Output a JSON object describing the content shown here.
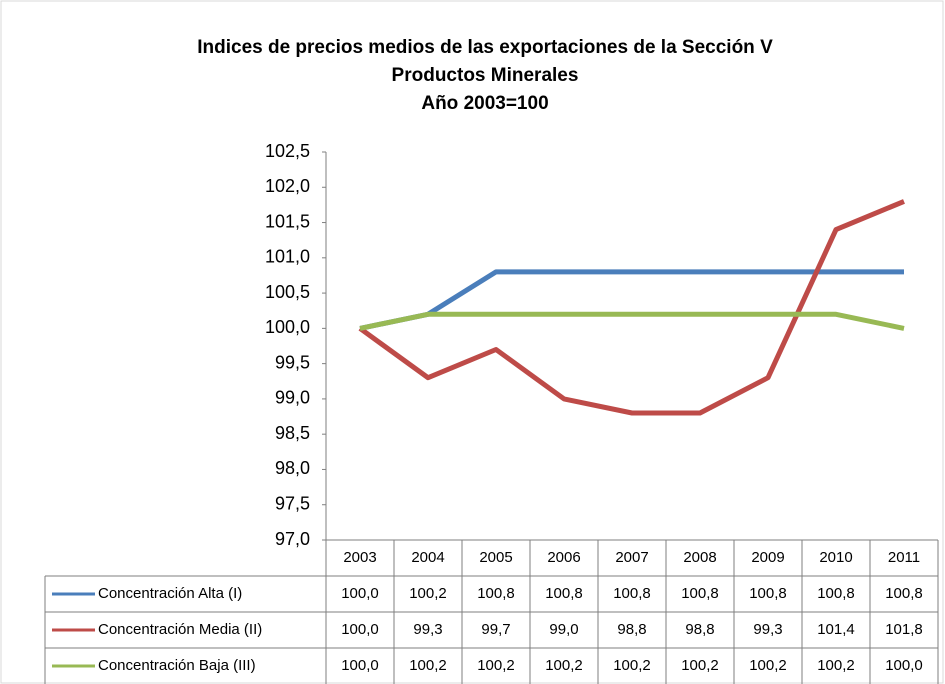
{
  "chart_data": {
    "type": "line",
    "title": [
      "Indices de precios medios de las exportaciones de la  Sección V",
      "Productos Minerales",
      "Año 2003=100"
    ],
    "categories": [
      "2003",
      "2004",
      "2005",
      "2006",
      "2007",
      "2008",
      "2009",
      "2010",
      "2011"
    ],
    "series": [
      {
        "name": "Concentración Alta (I)",
        "color": "#4a7ebb",
        "values": [
          100.0,
          100.2,
          100.8,
          100.8,
          100.8,
          100.8,
          100.8,
          100.8,
          100.8
        ],
        "value_labels": [
          "100,0",
          "100,2",
          "100,8",
          "100,8",
          "100,8",
          "100,8",
          "100,8",
          "100,8",
          "100,8"
        ]
      },
      {
        "name": "Concentración  Media (II)",
        "color": "#be4b48",
        "values": [
          100.0,
          99.3,
          99.7,
          99.0,
          98.8,
          98.8,
          99.3,
          101.4,
          101.8
        ],
        "value_labels": [
          "100,0",
          "99,3",
          "99,7",
          "99,0",
          "98,8",
          "98,8",
          "99,3",
          "101,4",
          "101,8"
        ]
      },
      {
        "name": "Concentración  Baja (III)",
        "color": "#98b954",
        "values": [
          100.0,
          100.2,
          100.2,
          100.2,
          100.2,
          100.2,
          100.2,
          100.2,
          100.0
        ],
        "value_labels": [
          "100,0",
          "100,2",
          "100,2",
          "100,2",
          "100,2",
          "100,2",
          "100,2",
          "100,2",
          "100,0"
        ]
      }
    ],
    "ylim": [
      97.0,
      102.5
    ],
    "yticks": [
      {
        "value": 97.0,
        "label": "97,0"
      },
      {
        "value": 97.5,
        "label": "97,5"
      },
      {
        "value": 98.0,
        "label": "98,0"
      },
      {
        "value": 98.5,
        "label": "98,5"
      },
      {
        "value": 99.0,
        "label": "99,0"
      },
      {
        "value": 99.5,
        "label": "99,5"
      },
      {
        "value": 100.0,
        "label": "100,0"
      },
      {
        "value": 100.5,
        "label": "100,5"
      },
      {
        "value": 101.0,
        "label": "101,0"
      },
      {
        "value": 101.5,
        "label": "101,5"
      },
      {
        "value": 102.0,
        "label": "102,0"
      },
      {
        "value": 102.5,
        "label": "102,5"
      }
    ],
    "grid": false,
    "legend": "table"
  }
}
